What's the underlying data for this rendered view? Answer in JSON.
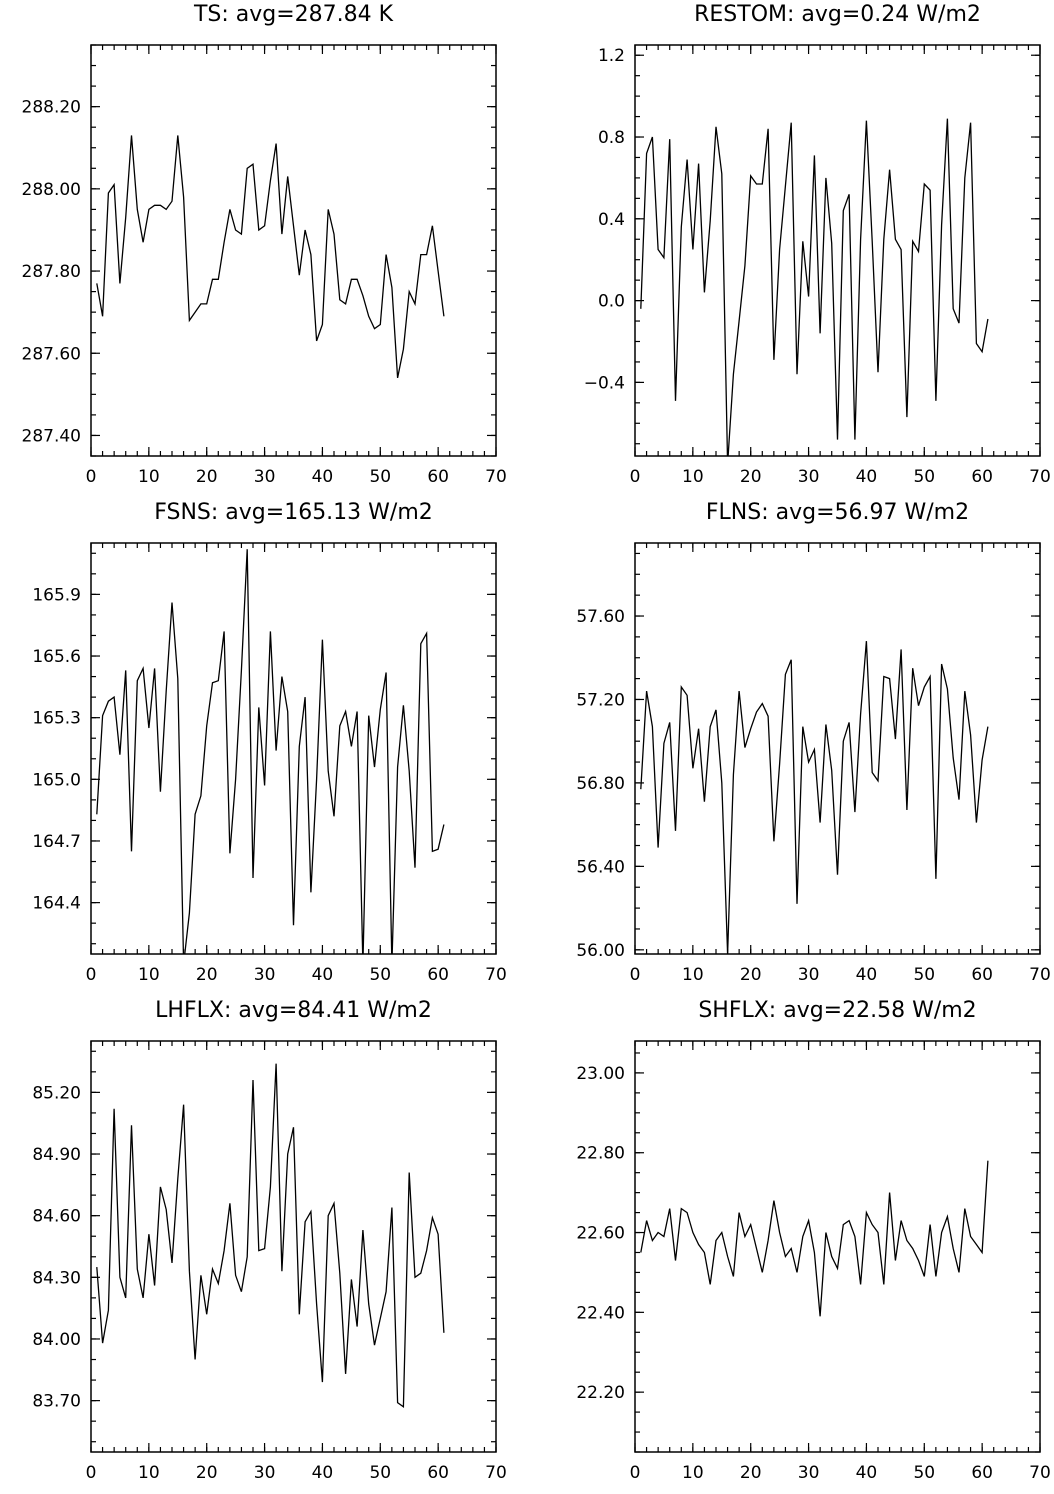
{
  "chart_data": [
    {
      "type": "line",
      "title": "TS: avg=287.84 K",
      "xlim": [
        0,
        70
      ],
      "ylim": [
        287.35,
        288.35
      ],
      "xticks": [
        0,
        10,
        20,
        30,
        40,
        50,
        60,
        70
      ],
      "xtick_labels": [
        "0",
        "10",
        "20",
        "30",
        "40",
        "50",
        "60",
        "70"
      ],
      "xminor": 2,
      "yticks": [
        287.4,
        287.6,
        287.8,
        288.0,
        288.2
      ],
      "ytick_labels": [
        "287.40",
        "287.60",
        "287.80",
        "288.00",
        "288.20"
      ],
      "yminor": 0.05,
      "series": [
        {
          "x": [
            1,
            2,
            3,
            4,
            5,
            6,
            7,
            8,
            9,
            10,
            11,
            12,
            13,
            14,
            15,
            16,
            17,
            18,
            19,
            20,
            21,
            22,
            23,
            24,
            25,
            26,
            27,
            28,
            29,
            30,
            31,
            32,
            33,
            34,
            35,
            36,
            37,
            38,
            39,
            40,
            41,
            42,
            43,
            44,
            45,
            46,
            47,
            48,
            49,
            50,
            51,
            52,
            53,
            54,
            55,
            56,
            57,
            58,
            59,
            60,
            61
          ],
          "values": [
            287.77,
            287.69,
            287.99,
            288.01,
            287.77,
            287.93,
            288.13,
            287.95,
            287.87,
            287.95,
            287.96,
            287.96,
            287.95,
            287.97,
            288.13,
            287.98,
            287.68,
            287.7,
            287.72,
            287.72,
            287.78,
            287.78,
            287.87,
            287.95,
            287.9,
            287.89,
            288.05,
            288.06,
            287.9,
            287.91,
            288.02,
            288.11,
            287.89,
            288.03,
            287.91,
            287.79,
            287.9,
            287.84,
            287.63,
            287.67,
            287.95,
            287.89,
            287.73,
            287.72,
            287.78,
            287.78,
            287.74,
            287.69,
            287.66,
            287.67,
            287.84,
            287.76,
            287.54,
            287.61,
            287.75,
            287.72,
            287.84,
            287.84,
            287.91,
            287.8,
            287.69
          ]
        }
      ]
    },
    {
      "type": "line",
      "title": "RESTOM: avg=0.24 W/m2",
      "xlim": [
        0,
        70
      ],
      "ylim": [
        -0.76,
        1.25
      ],
      "xticks": [
        0,
        10,
        20,
        30,
        40,
        50,
        60,
        70
      ],
      "xtick_labels": [
        "0",
        "10",
        "20",
        "30",
        "40",
        "50",
        "60",
        "70"
      ],
      "xminor": 2,
      "yticks": [
        -0.4,
        0.0,
        0.4,
        0.8,
        1.2
      ],
      "ytick_labels": [
        "−0.4",
        "0.0",
        "0.4",
        "0.8",
        "1.2"
      ],
      "yminor": 0.1,
      "series": [
        {
          "x": [
            1,
            2,
            3,
            4,
            5,
            6,
            7,
            8,
            9,
            10,
            11,
            12,
            13,
            14,
            15,
            16,
            17,
            18,
            19,
            20,
            21,
            22,
            23,
            24,
            25,
            26,
            27,
            28,
            29,
            30,
            31,
            32,
            33,
            34,
            35,
            36,
            37,
            38,
            39,
            40,
            41,
            42,
            43,
            44,
            45,
            46,
            47,
            48,
            49,
            50,
            51,
            52,
            53,
            54,
            55,
            56,
            57,
            58,
            59,
            60,
            61
          ],
          "values": [
            -0.04,
            0.72,
            0.8,
            0.25,
            0.21,
            0.79,
            -0.49,
            0.36,
            0.69,
            0.25,
            0.67,
            0.04,
            0.39,
            0.85,
            0.62,
            -0.8,
            -0.36,
            -0.1,
            0.17,
            0.61,
            0.57,
            0.57,
            0.84,
            -0.29,
            0.25,
            0.56,
            0.87,
            -0.36,
            0.29,
            0.02,
            0.71,
            -0.16,
            0.6,
            0.28,
            -0.68,
            0.44,
            0.52,
            -0.68,
            0.3,
            0.88,
            0.29,
            -0.35,
            0.3,
            0.64,
            0.3,
            0.25,
            -0.57,
            0.29,
            0.24,
            0.57,
            0.54,
            -0.49,
            0.37,
            0.89,
            -0.04,
            -0.11,
            0.6,
            0.87,
            -0.21,
            -0.25,
            -0.09
          ]
        }
      ]
    },
    {
      "type": "line",
      "title": "FSNS: avg=165.13 W/m2",
      "xlim": [
        0,
        70
      ],
      "ylim": [
        164.15,
        166.15
      ],
      "xticks": [
        0,
        10,
        20,
        30,
        40,
        50,
        60,
        70
      ],
      "xtick_labels": [
        "0",
        "10",
        "20",
        "30",
        "40",
        "50",
        "60",
        "70"
      ],
      "xminor": 2,
      "yticks": [
        164.4,
        164.7,
        165.0,
        165.3,
        165.6,
        165.9
      ],
      "ytick_labels": [
        "164.4",
        "164.7",
        "165.0",
        "165.3",
        "165.6",
        "165.9"
      ],
      "yminor": 0.1,
      "series": [
        {
          "x": [
            1,
            2,
            3,
            4,
            5,
            6,
            7,
            8,
            9,
            10,
            11,
            12,
            13,
            14,
            15,
            16,
            17,
            18,
            19,
            20,
            21,
            22,
            23,
            24,
            25,
            26,
            27,
            28,
            29,
            30,
            31,
            32,
            33,
            34,
            35,
            36,
            37,
            38,
            39,
            40,
            41,
            42,
            43,
            44,
            45,
            46,
            47,
            48,
            49,
            50,
            51,
            52,
            53,
            54,
            55,
            56,
            57,
            58,
            59,
            60,
            61
          ],
          "values": [
            164.83,
            165.31,
            165.38,
            165.4,
            165.12,
            165.53,
            164.65,
            165.48,
            165.54,
            165.25,
            165.54,
            164.94,
            165.43,
            165.86,
            165.49,
            164.1,
            164.35,
            164.83,
            164.92,
            165.26,
            165.47,
            165.48,
            165.72,
            164.64,
            165.0,
            165.53,
            166.12,
            164.52,
            165.35,
            164.97,
            165.72,
            165.14,
            165.5,
            165.33,
            164.29,
            165.16,
            165.4,
            164.45,
            165.0,
            165.68,
            165.04,
            164.82,
            165.26,
            165.33,
            165.16,
            165.33,
            164.1,
            165.31,
            165.06,
            165.34,
            165.52,
            164.1,
            165.06,
            165.36,
            165.04,
            164.57,
            165.66,
            165.71,
            164.65,
            164.66,
            164.78
          ]
        }
      ]
    },
    {
      "type": "line",
      "title": "FLNS: avg=56.97 W/m2",
      "xlim": [
        0,
        70
      ],
      "ylim": [
        55.98,
        57.95
      ],
      "xticks": [
        0,
        10,
        20,
        30,
        40,
        50,
        60,
        70
      ],
      "xtick_labels": [
        "0",
        "10",
        "20",
        "30",
        "40",
        "50",
        "60",
        "70"
      ],
      "xminor": 2,
      "yticks": [
        56.0,
        56.4,
        56.8,
        57.2,
        57.6
      ],
      "ytick_labels": [
        "56.00",
        "56.40",
        "56.80",
        "57.20",
        "57.60"
      ],
      "yminor": 0.1,
      "series": [
        {
          "x": [
            1,
            2,
            3,
            4,
            5,
            6,
            7,
            8,
            9,
            10,
            11,
            12,
            13,
            14,
            15,
            16,
            17,
            18,
            19,
            20,
            21,
            22,
            23,
            24,
            25,
            26,
            27,
            28,
            29,
            30,
            31,
            32,
            33,
            34,
            35,
            36,
            37,
            38,
            39,
            40,
            41,
            42,
            43,
            44,
            45,
            46,
            47,
            48,
            49,
            50,
            51,
            52,
            53,
            54,
            55,
            56,
            57,
            58,
            59,
            60,
            61
          ],
          "values": [
            56.77,
            57.24,
            57.07,
            56.49,
            56.99,
            57.09,
            56.57,
            57.26,
            57.22,
            56.87,
            57.06,
            56.71,
            57.07,
            57.15,
            56.8,
            55.98,
            56.84,
            57.24,
            56.97,
            57.06,
            57.14,
            57.18,
            57.12,
            56.52,
            56.89,
            57.32,
            57.39,
            56.22,
            57.07,
            56.9,
            56.96,
            56.61,
            57.08,
            56.86,
            56.36,
            57.0,
            57.09,
            56.66,
            57.13,
            57.48,
            56.85,
            56.81,
            57.31,
            57.3,
            57.01,
            57.44,
            56.67,
            57.35,
            57.17,
            57.26,
            57.31,
            56.34,
            57.37,
            57.25,
            56.92,
            56.72,
            57.24,
            57.03,
            56.61,
            56.91,
            57.07
          ]
        }
      ]
    },
    {
      "type": "line",
      "title": "LHFLX: avg=84.41 W/m2",
      "xlim": [
        0,
        70
      ],
      "ylim": [
        83.45,
        85.45
      ],
      "xticks": [
        0,
        10,
        20,
        30,
        40,
        50,
        60,
        70
      ],
      "xtick_labels": [
        "0",
        "10",
        "20",
        "30",
        "40",
        "50",
        "60",
        "70"
      ],
      "xminor": 2,
      "yticks": [
        83.7,
        84.0,
        84.3,
        84.6,
        84.9,
        85.2
      ],
      "ytick_labels": [
        "83.70",
        "84.00",
        "84.30",
        "84.60",
        "84.90",
        "85.20"
      ],
      "yminor": 0.1,
      "series": [
        {
          "x": [
            1,
            2,
            3,
            4,
            5,
            6,
            7,
            8,
            9,
            10,
            11,
            12,
            13,
            14,
            15,
            16,
            17,
            18,
            19,
            20,
            21,
            22,
            23,
            24,
            25,
            26,
            27,
            28,
            29,
            30,
            31,
            32,
            33,
            34,
            35,
            36,
            37,
            38,
            39,
            40,
            41,
            42,
            43,
            44,
            45,
            46,
            47,
            48,
            49,
            50,
            51,
            52,
            53,
            54,
            55,
            56,
            57,
            58,
            59,
            60,
            61
          ],
          "values": [
            84.35,
            83.98,
            84.14,
            85.12,
            84.3,
            84.2,
            85.04,
            84.34,
            84.2,
            84.51,
            84.26,
            84.74,
            84.63,
            84.37,
            84.78,
            85.14,
            84.33,
            83.9,
            84.31,
            84.12,
            84.34,
            84.27,
            84.43,
            84.66,
            84.31,
            84.23,
            84.4,
            85.26,
            84.43,
            84.44,
            84.74,
            85.34,
            84.33,
            84.9,
            85.03,
            84.12,
            84.57,
            84.62,
            84.17,
            83.79,
            84.6,
            84.66,
            84.32,
            83.83,
            84.29,
            84.06,
            84.53,
            84.17,
            83.97,
            84.1,
            84.23,
            84.64,
            83.69,
            83.67,
            84.81,
            84.3,
            84.32,
            84.43,
            84.59,
            84.51,
            84.03
          ]
        }
      ]
    },
    {
      "type": "line",
      "title": "SHFLX: avg=22.58 W/m2",
      "xlim": [
        0,
        70
      ],
      "ylim": [
        22.05,
        23.08
      ],
      "xticks": [
        0,
        10,
        20,
        30,
        40,
        50,
        60,
        70
      ],
      "xtick_labels": [
        "0",
        "10",
        "20",
        "30",
        "40",
        "50",
        "60",
        "70"
      ],
      "xminor": 2,
      "yticks": [
        22.2,
        22.4,
        22.6,
        22.8,
        23.0
      ],
      "ytick_labels": [
        "22.20",
        "22.40",
        "22.60",
        "22.80",
        "23.00"
      ],
      "yminor": 0.05,
      "series": [
        {
          "x": [
            1,
            2,
            3,
            4,
            5,
            6,
            7,
            8,
            9,
            10,
            11,
            12,
            13,
            14,
            15,
            16,
            17,
            18,
            19,
            20,
            21,
            22,
            23,
            24,
            25,
            26,
            27,
            28,
            29,
            30,
            31,
            32,
            33,
            34,
            35,
            36,
            37,
            38,
            39,
            40,
            41,
            42,
            43,
            44,
            45,
            46,
            47,
            48,
            49,
            50,
            51,
            52,
            53,
            54,
            55,
            56,
            57,
            58,
            59,
            60,
            61
          ],
          "values": [
            22.55,
            22.63,
            22.58,
            22.6,
            22.59,
            22.66,
            22.53,
            22.66,
            22.65,
            22.6,
            22.57,
            22.55,
            22.47,
            22.58,
            22.6,
            22.54,
            22.49,
            22.65,
            22.59,
            22.62,
            22.56,
            22.5,
            22.58,
            22.68,
            22.6,
            22.54,
            22.56,
            22.5,
            22.59,
            22.63,
            22.55,
            22.39,
            22.6,
            22.54,
            22.51,
            22.62,
            22.63,
            22.59,
            22.47,
            22.65,
            22.62,
            22.6,
            22.47,
            22.7,
            22.53,
            22.63,
            22.58,
            22.56,
            22.53,
            22.49,
            22.62,
            22.49,
            22.6,
            22.64,
            22.56,
            22.5,
            22.66,
            22.59,
            22.57,
            22.55,
            22.78
          ]
        }
      ]
    }
  ]
}
